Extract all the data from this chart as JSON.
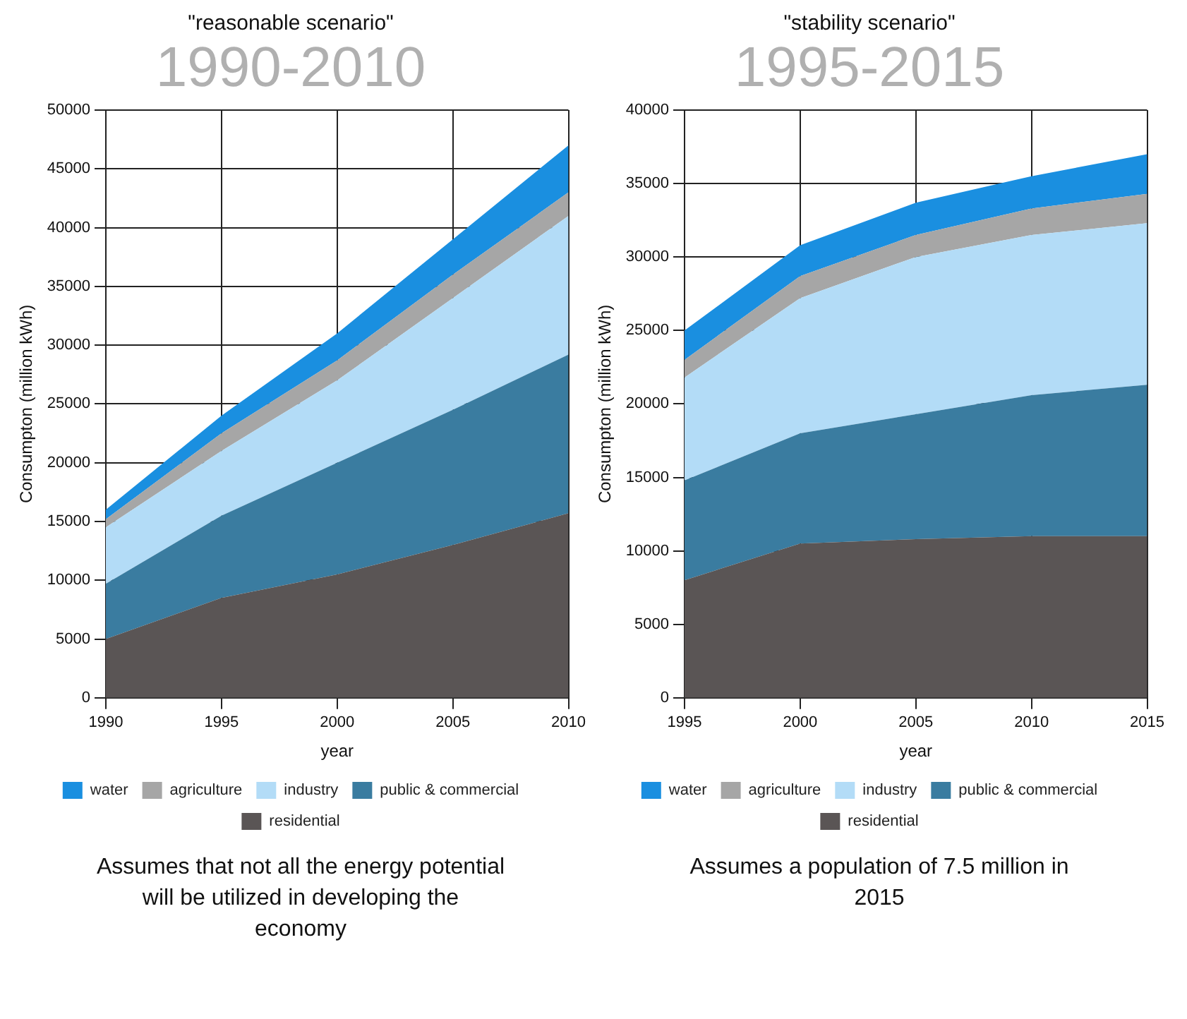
{
  "chart_data": [
    {
      "type": "area",
      "title": "\"reasonable scenario\"",
      "subtitle": "1990-2010",
      "xlabel": "year",
      "ylabel": "Consumpton (million kWh)",
      "stacked": true,
      "x": [
        1990,
        1995,
        2000,
        2005,
        2010
      ],
      "xlim": [
        1990,
        2010
      ],
      "xticks": [
        1990,
        1995,
        2000,
        2005,
        2010
      ],
      "ylim": [
        0,
        50000
      ],
      "yticks": [
        0,
        5000,
        10000,
        15000,
        20000,
        25000,
        30000,
        35000,
        40000,
        45000,
        50000
      ],
      "grid": true,
      "legend": "bottom",
      "annotations": [
        "Assumes that not all the energy potential will be utilized in developing the economy"
      ],
      "series": [
        {
          "name": "residential",
          "color": "#5a5555",
          "values": [
            5000,
            8500,
            10500,
            13000,
            15700
          ]
        },
        {
          "name": "public & commercial",
          "color": "#3a7ca0",
          "values": [
            4700,
            7000,
            9500,
            11500,
            13500
          ]
        },
        {
          "name": "industry",
          "color": "#b3dcf7",
          "values": [
            4800,
            5500,
            7000,
            9500,
            11800
          ]
        },
        {
          "name": "agriculture",
          "color": "#a6a6a6",
          "values": [
            700,
            1500,
            1700,
            2000,
            2000
          ]
        },
        {
          "name": "water",
          "color": "#1a8fe0",
          "values": [
            800,
            1500,
            2300,
            3000,
            4000
          ]
        }
      ]
    },
    {
      "type": "area",
      "title": "\"stability scenario\"",
      "subtitle": "1995-2015",
      "xlabel": "year",
      "ylabel": "Consumpton (million kWh)",
      "stacked": true,
      "x": [
        1995,
        2000,
        2005,
        2010,
        2015
      ],
      "xlim": [
        1995,
        2015
      ],
      "xticks": [
        1995,
        2000,
        2005,
        2010,
        2015
      ],
      "ylim": [
        0,
        40000
      ],
      "yticks": [
        0,
        5000,
        10000,
        15000,
        20000,
        25000,
        30000,
        35000,
        40000
      ],
      "grid": true,
      "legend": "bottom",
      "annotations": [
        "Assumes a population of 7.5 million in 2015"
      ],
      "series": [
        {
          "name": "residential",
          "color": "#5a5555",
          "values": [
            8000,
            10500,
            10800,
            11000,
            11000
          ]
        },
        {
          "name": "public & commercial",
          "color": "#3a7ca0",
          "values": [
            6800,
            7500,
            8500,
            9600,
            10300
          ]
        },
        {
          "name": "industry",
          "color": "#b3dcf7",
          "values": [
            7000,
            9200,
            10700,
            10900,
            11000
          ]
        },
        {
          "name": "agriculture",
          "color": "#a6a6a6",
          "values": [
            1200,
            1500,
            1500,
            1800,
            2000
          ]
        },
        {
          "name": "water",
          "color": "#1a8fe0",
          "values": [
            2000,
            2100,
            2200,
            2200,
            2700
          ]
        }
      ]
    }
  ]
}
